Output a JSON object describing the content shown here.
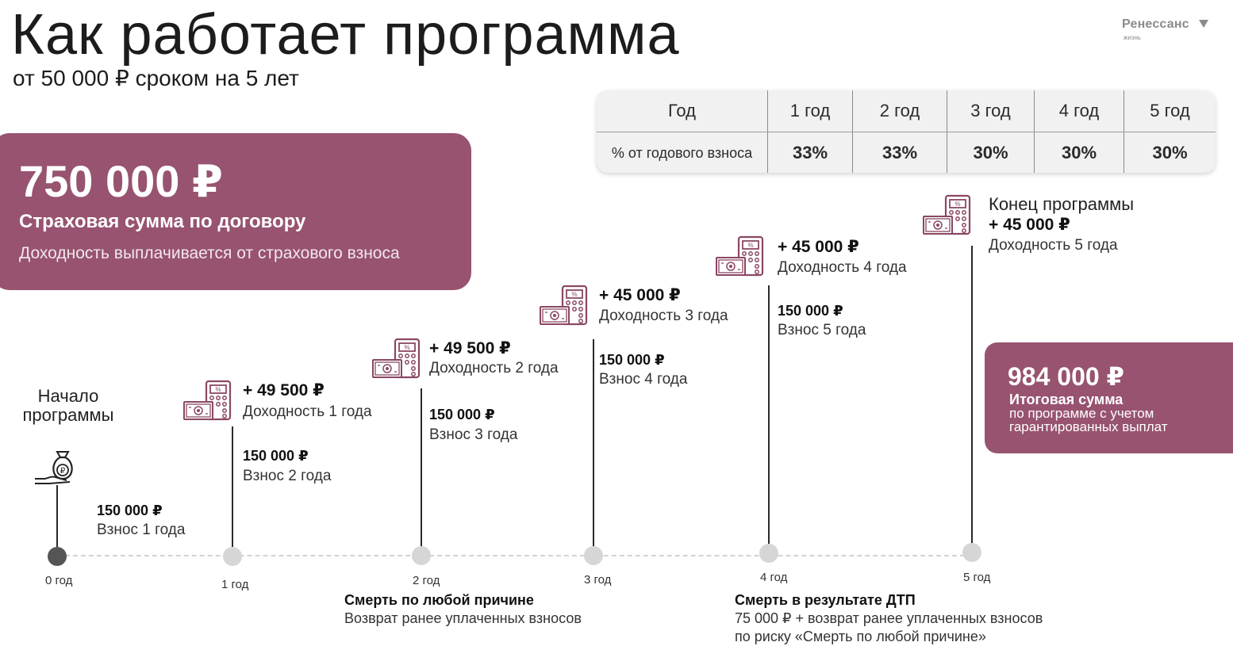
{
  "header": {
    "title": "Как работает программа",
    "subtitle": "от 50 000 ₽ сроком на 5 лет"
  },
  "logo": {
    "name": "Ренессанс",
    "sub": "жизнь"
  },
  "table": {
    "header": [
      "Год",
      "1 год",
      "2 год",
      "3 год",
      "4 год",
      "5 год"
    ],
    "row_label": "% от годового взноса",
    "values": [
      "33%",
      "33%",
      "30%",
      "30%",
      "30%"
    ]
  },
  "sum_panel": {
    "amount": "750 000 ₽",
    "caption": "Страховая сумма по договору",
    "note": "Доходность выплачивается от страхового взноса"
  },
  "total_panel": {
    "amount": "984 000 ₽",
    "caption": "Итоговая сумма",
    "note_line1": "по программе с учетом",
    "note_line2": "гарантированных выплат"
  },
  "timeline": {
    "start_label": "Начало программы",
    "years": [
      "0 год",
      "1 год",
      "2 год",
      "3 год",
      "4 год",
      "5 год"
    ],
    "contributions": [
      {
        "amount": "150 000 ₽",
        "label": "Взнос 1 года"
      },
      {
        "amount": "150 000 ₽",
        "label": "Взнос 2 года"
      },
      {
        "amount": "150 000 ₽",
        "label": "Взнос 3 года"
      },
      {
        "amount": "150 000 ₽",
        "label": "Взнос 4 года"
      },
      {
        "amount": "150 000 ₽",
        "label": "Взнос 5 года"
      }
    ],
    "income": [
      {
        "amount": "+ 49 500 ₽",
        "label": "Доходность 1 года"
      },
      {
        "amount": "+ 49 500 ₽",
        "label": "Доходность 2 года"
      },
      {
        "amount": "+ 45 000 ₽",
        "label": "Доходность 3 года"
      },
      {
        "amount": "+ 45 000 ₽",
        "label": "Доходность 4 года"
      },
      {
        "amount": "+ 45 000 ₽",
        "label": "Доходность 5 года"
      }
    ],
    "end_label": "Конец программы"
  },
  "notes": {
    "death_any": {
      "title": "Смерть по любой причине",
      "text": "Возврат ранее уплаченных взносов"
    },
    "death_accident": {
      "title": "Смерть в результате ДТП",
      "text1": "75 000 ₽ + возврат ранее уплаченных взносов",
      "text2": "по риску «Смерть по любой причине»"
    }
  },
  "colors": {
    "accent": "#975370",
    "icon": "#8a4764"
  }
}
